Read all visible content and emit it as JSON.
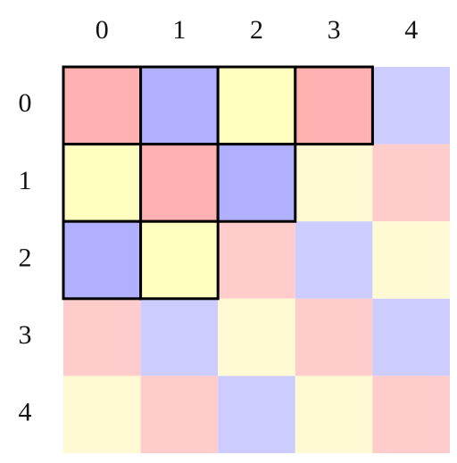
{
  "grid": {
    "columns": [
      "0",
      "1",
      "2",
      "3",
      "4"
    ],
    "rows": [
      "0",
      "1",
      "2",
      "3",
      "4"
    ],
    "colors": {
      "red": "#ffb0b0",
      "blue": "#b0b0ff",
      "yellow": "#ffffc0"
    },
    "faded_colors": {
      "red": "#ffcccc",
      "blue": "#ccccff",
      "yellow": "#fffad4"
    },
    "cells": [
      [
        {
          "color": "red",
          "highlighted": true
        },
        {
          "color": "blue",
          "highlighted": true
        },
        {
          "color": "yellow",
          "highlighted": true
        },
        {
          "color": "red",
          "highlighted": true
        },
        {
          "color": "blue",
          "highlighted": false
        }
      ],
      [
        {
          "color": "yellow",
          "highlighted": true
        },
        {
          "color": "red",
          "highlighted": true
        },
        {
          "color": "blue",
          "highlighted": true
        },
        {
          "color": "yellow",
          "highlighted": false
        },
        {
          "color": "red",
          "highlighted": false
        }
      ],
      [
        {
          "color": "blue",
          "highlighted": true
        },
        {
          "color": "yellow",
          "highlighted": true
        },
        {
          "color": "red",
          "highlighted": false
        },
        {
          "color": "blue",
          "highlighted": false
        },
        {
          "color": "yellow",
          "highlighted": false
        }
      ],
      [
        {
          "color": "red",
          "highlighted": false
        },
        {
          "color": "blue",
          "highlighted": false
        },
        {
          "color": "yellow",
          "highlighted": false
        },
        {
          "color": "red",
          "highlighted": false
        },
        {
          "color": "blue",
          "highlighted": false
        }
      ],
      [
        {
          "color": "yellow",
          "highlighted": false
        },
        {
          "color": "red",
          "highlighted": false
        },
        {
          "color": "blue",
          "highlighted": false
        },
        {
          "color": "yellow",
          "highlighted": false
        },
        {
          "color": "red",
          "highlighted": false
        }
      ]
    ]
  }
}
